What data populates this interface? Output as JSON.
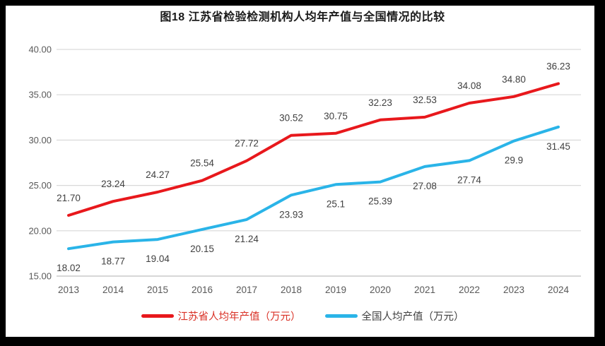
{
  "panel": {
    "background": "#ffffff",
    "frame_color": "#000000"
  },
  "chart_data": {
    "type": "line",
    "title": "图18  江苏省检验检测机构人均年产值与全国情况的比较",
    "categories": [
      "2013",
      "2014",
      "2015",
      "2016",
      "2017",
      "2018",
      "2019",
      "2020",
      "2021",
      "2022",
      "2023",
      "2024"
    ],
    "series": [
      {
        "name": "江苏省人均年产值（万元）",
        "color": "#e8181c",
        "legend_text_color": "#d93025",
        "label_position": "above",
        "values": [
          21.7,
          23.24,
          24.27,
          25.54,
          27.72,
          30.52,
          30.75,
          32.23,
          32.53,
          34.08,
          34.8,
          36.23
        ],
        "labels": [
          "21.70",
          "23.24",
          "24.27",
          "25.54",
          "27.72",
          "30.52",
          "30.75",
          "32.23",
          "32.53",
          "34.08",
          "34.80",
          "36.23"
        ]
      },
      {
        "name": "全国人均产值（万元）",
        "color": "#2ab4e8",
        "legend_text_color": "#404040",
        "label_position": "below",
        "values": [
          18.02,
          18.77,
          19.04,
          20.15,
          21.24,
          23.93,
          25.1,
          25.39,
          27.08,
          27.74,
          29.9,
          31.45
        ],
        "labels": [
          "18.02",
          "18.77",
          "19.04",
          "20.15",
          "21.24",
          "23.93",
          "25.1",
          "25.39",
          "27.08",
          "27.74",
          "29.9",
          "31.45"
        ]
      }
    ],
    "y_axis": {
      "min": 15,
      "max": 40,
      "step": 5,
      "tick_labels": [
        "15.00",
        "20.00",
        "25.00",
        "30.00",
        "35.00",
        "40.00"
      ]
    },
    "grid": true,
    "legend_position": "bottom",
    "style": {
      "grid_color": "#d9d9d9",
      "axis_line_color": "#bfbfbf",
      "tick_label_color": "#595959",
      "data_label_color": "#404040",
      "line_width": 4
    }
  }
}
